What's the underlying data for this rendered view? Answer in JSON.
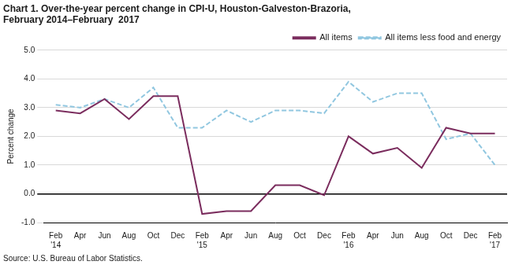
{
  "chart_data": {
    "type": "line",
    "title": [
      "Chart 1. Over-the-year percent change in CPI-U, Houston-Galveston-Brazoria,",
      "February 2014–February  2017"
    ],
    "ylabel": "Percent change",
    "source": "Source: U.S. Bureau of Labor Statistics.",
    "categories": [
      "Feb\n'14",
      "Apr",
      "Jun",
      "Aug",
      "Oct",
      "Dec",
      "Feb\n'15",
      "Apr",
      "Jun",
      "Aug",
      "Oct",
      "Dec",
      "Feb\n'16",
      "Apr",
      "Jun",
      "Aug",
      "Oct",
      "Dec",
      "Feb\n'17"
    ],
    "series": [
      {
        "name": "All items",
        "color": "#7B2D5E",
        "line_style": "solid",
        "values": [
          2.9,
          2.8,
          3.3,
          2.6,
          3.4,
          3.4,
          -0.7,
          -0.6,
          -0.6,
          0.3,
          0.3,
          -0.05,
          2.0,
          1.4,
          1.6,
          0.9,
          2.3,
          2.1,
          2.1
        ]
      },
      {
        "name": "All items less food and energy",
        "color": "#91C7E0",
        "line_style": "dashed",
        "values": [
          3.1,
          3.0,
          3.3,
          3.0,
          3.7,
          2.3,
          2.3,
          2.9,
          2.5,
          2.9,
          2.9,
          2.8,
          3.9,
          3.2,
          3.5,
          3.5,
          1.9,
          2.1,
          1.0
        ]
      }
    ],
    "ylim": [
      -1.0,
      5.0
    ],
    "yticks": [
      {
        "value": -1.0,
        "label": "-1.0"
      },
      {
        "value": 0.0,
        "label": "0.0"
      },
      {
        "value": 1.0,
        "label": "1.0"
      },
      {
        "value": 2.0,
        "label": "2.0"
      },
      {
        "value": 3.0,
        "label": "3.0"
      },
      {
        "value": 4.0,
        "label": "4.0"
      },
      {
        "value": 5.0,
        "label": "5.0"
      }
    ],
    "grid": true,
    "legend": "upper right"
  }
}
